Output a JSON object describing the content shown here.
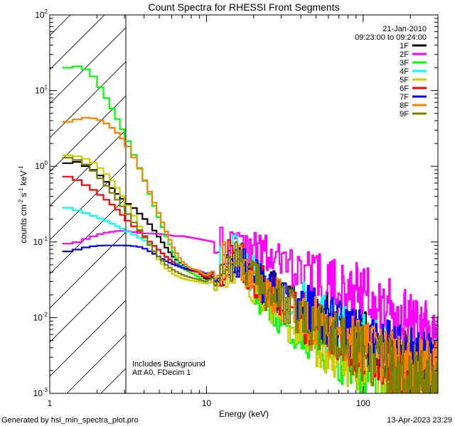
{
  "chart_data": {
    "type": "line",
    "title": "Count Spectra for RHESSI Front Segments",
    "xlabel": "Energy (keV)",
    "ylabel_parts": {
      "a": "counts cm",
      "b": "-2",
      "c": " s",
      "d": "-1",
      "e": " keV",
      "f": "-1"
    },
    "xscale": "log",
    "yscale": "log",
    "xlim": [
      1,
      300
    ],
    "ylim": [
      0.001,
      100
    ],
    "x_ticks": [
      {
        "value": 1,
        "label": "1"
      },
      {
        "value": 10,
        "label": "10"
      },
      {
        "value": 100,
        "label": "100"
      }
    ],
    "y_ticks": [
      {
        "value": 0.001,
        "base": "10",
        "exp": "-3"
      },
      {
        "value": 0.01,
        "base": "10",
        "exp": "-2"
      },
      {
        "value": 0.1,
        "base": "10",
        "exp": "-1"
      },
      {
        "value": 1,
        "base": "10",
        "exp": "0"
      },
      {
        "value": 10,
        "base": "10",
        "exp": "1"
      },
      {
        "value": 100,
        "base": "10",
        "exp": "2"
      }
    ],
    "hatch_region_x": [
      1,
      3
    ],
    "date": "21-Jan-2010",
    "time_range": "09:23:00 to 09:24:00",
    "annotations": [
      "Includes Background",
      "Att A0, FDecim 1"
    ],
    "footer_left": "Generated by hsi_min_spectra_plot.pro",
    "footer_right": "13-Apr-2023 23:29",
    "legend_location": "top-right",
    "series": [
      {
        "name": "1F",
        "color": "#000000",
        "seed": 11,
        "floor_x": 150,
        "values": [
          1.1,
          1.1,
          1.15,
          1.0,
          0.88,
          0.72,
          0.55,
          0.42,
          0.33,
          0.28,
          0.22,
          0.17,
          0.12,
          0.085,
          0.062,
          0.05,
          0.043,
          0.04,
          0.032,
          0.035,
          0.045,
          0.05,
          0.06,
          0.042,
          0.032,
          0.028,
          0.024,
          0.02,
          0.017,
          0.015,
          0.014,
          0.012,
          0.011,
          0.0095,
          0.0085,
          0.0075,
          0.0065,
          0.0057,
          0.005,
          0.0045,
          0.004,
          0.0036,
          0.0032,
          0.003,
          0.0028,
          0.0026,
          0.0025,
          0.0024
        ]
      },
      {
        "name": "2F",
        "color": "#ff00ff",
        "seed": 22,
        "floor_x": 250,
        "values": [
          0.095,
          0.095,
          0.1,
          0.11,
          0.12,
          0.13,
          0.135,
          0.14,
          0.14,
          0.135,
          0.13,
          0.13,
          0.128,
          0.125,
          0.12,
          0.12,
          0.115,
          0.11,
          0.105,
          0.1,
          0.095,
          0.09,
          0.085,
          0.08,
          0.075,
          0.07,
          0.062,
          0.055,
          0.05,
          0.045,
          0.04,
          0.036,
          0.033,
          0.03,
          0.028,
          0.026,
          0.024,
          0.022,
          0.02,
          0.018,
          0.016,
          0.014,
          0.012,
          0.01,
          0.009,
          0.008,
          0.007,
          0.006
        ]
      },
      {
        "name": "3F",
        "color": "#00ff00",
        "seed": 33,
        "floor_x": 120,
        "values": [
          20,
          20,
          21,
          19,
          15,
          10,
          6.5,
          4.0,
          2.4,
          1.4,
          0.8,
          0.42,
          0.22,
          0.12,
          0.07,
          0.045,
          0.04,
          0.035,
          0.028,
          0.03,
          0.04,
          0.045,
          0.05,
          0.035,
          0.022,
          0.017,
          0.014,
          0.011,
          0.009,
          0.0075,
          0.0065,
          0.0055,
          0.0047,
          0.004,
          0.0035,
          0.003,
          0.0026,
          0.0023,
          0.002,
          0.0019,
          0.0018,
          0.0017,
          0.0016,
          0.0015,
          0.0014,
          0.0013,
          0.0012,
          0.0012
        ]
      },
      {
        "name": "4F",
        "color": "#00ffff",
        "seed": 44,
        "floor_x": 160,
        "values": [
          0.29,
          0.28,
          0.26,
          0.24,
          0.22,
          0.2,
          0.18,
          0.16,
          0.14,
          0.125,
          0.11,
          0.095,
          0.08,
          0.065,
          0.055,
          0.048,
          0.043,
          0.04,
          0.035,
          0.04,
          0.05,
          0.065,
          0.075,
          0.05,
          0.035,
          0.03,
          0.025,
          0.021,
          0.018,
          0.015,
          0.013,
          0.011,
          0.0095,
          0.0085,
          0.0075,
          0.0065,
          0.0057,
          0.005,
          0.0045,
          0.004,
          0.0036,
          0.0033,
          0.003,
          0.0028,
          0.0026,
          0.0025,
          0.0024,
          0.0023
        ]
      },
      {
        "name": "5F",
        "color": "#cccc00",
        "seed": 55,
        "floor_x": 110,
        "values": [
          1.4,
          1.4,
          1.35,
          1.25,
          1.1,
          0.9,
          0.7,
          0.5,
          0.33,
          0.22,
          0.14,
          0.09,
          0.06,
          0.045,
          0.037,
          0.033,
          0.031,
          0.03,
          0.028,
          0.03,
          0.04,
          0.05,
          0.055,
          0.035,
          0.024,
          0.019,
          0.015,
          0.012,
          0.0095,
          0.008,
          0.0068,
          0.0058,
          0.005,
          0.0043,
          0.0037,
          0.0032,
          0.0028,
          0.0025,
          0.0022,
          0.002,
          0.0018,
          0.0016,
          0.0015,
          0.0014,
          0.0013,
          0.0012,
          0.0012,
          0.0011
        ]
      },
      {
        "name": "6F",
        "color": "#ff0000",
        "seed": 66,
        "floor_x": 150,
        "values": [
          0.75,
          0.72,
          0.65,
          0.56,
          0.48,
          0.4,
          0.33,
          0.26,
          0.2,
          0.16,
          0.13,
          0.1,
          0.08,
          0.064,
          0.053,
          0.046,
          0.042,
          0.04,
          0.034,
          0.038,
          0.05,
          0.06,
          0.07,
          0.045,
          0.032,
          0.027,
          0.022,
          0.018,
          0.015,
          0.0125,
          0.0108,
          0.0092,
          0.008,
          0.007,
          0.0061,
          0.0053,
          0.0047,
          0.0042,
          0.0038,
          0.0034,
          0.0031,
          0.0029,
          0.0027,
          0.0025,
          0.0024,
          0.0023,
          0.0022,
          0.0022
        ]
      },
      {
        "name": "7F",
        "color": "#0000ff",
        "seed": 77,
        "floor_x": 200,
        "values": [
          0.075,
          0.075,
          0.08,
          0.085,
          0.088,
          0.09,
          0.09,
          0.09,
          0.09,
          0.088,
          0.085,
          0.075,
          0.065,
          0.056,
          0.05,
          0.046,
          0.043,
          0.042,
          0.038,
          0.04,
          0.048,
          0.055,
          0.065,
          0.05,
          0.035,
          0.03,
          0.025,
          0.021,
          0.018,
          0.0155,
          0.0135,
          0.0118,
          0.0104,
          0.0092,
          0.0082,
          0.0073,
          0.0065,
          0.0058,
          0.0052,
          0.0047,
          0.0043,
          0.004,
          0.0037,
          0.0034,
          0.0031,
          0.0029,
          0.0027,
          0.0025
        ]
      },
      {
        "name": "8F",
        "color": "#ff8000",
        "seed": 88,
        "floor_x": 140,
        "values": [
          3.8,
          3.9,
          4.2,
          4.4,
          4.3,
          4.0,
          3.4,
          2.7,
          2.0,
          1.3,
          0.8,
          0.45,
          0.25,
          0.14,
          0.08,
          0.055,
          0.045,
          0.042,
          0.036,
          0.042,
          0.055,
          0.07,
          0.075,
          0.048,
          0.033,
          0.027,
          0.022,
          0.018,
          0.015,
          0.0125,
          0.0105,
          0.009,
          0.0078,
          0.0068,
          0.006,
          0.0053,
          0.0047,
          0.0042,
          0.0038,
          0.0034,
          0.0031,
          0.0029,
          0.0027,
          0.0025,
          0.0024,
          0.0023,
          0.0022,
          0.0021
        ]
      },
      {
        "name": "9F",
        "color": "#808000",
        "seed": 99,
        "floor_x": 140,
        "values": [
          1.3,
          1.3,
          1.2,
          1.05,
          0.85,
          0.65,
          0.48,
          0.35,
          0.25,
          0.18,
          0.13,
          0.09,
          0.065,
          0.05,
          0.042,
          0.037,
          0.034,
          0.032,
          0.03,
          0.034,
          0.045,
          0.055,
          0.065,
          0.045,
          0.032,
          0.026,
          0.021,
          0.017,
          0.014,
          0.0115,
          0.0097,
          0.0082,
          0.007,
          0.006,
          0.0052,
          0.0045,
          0.004,
          0.0036,
          0.0032,
          0.0029,
          0.0026,
          0.0024,
          0.0022,
          0.002,
          0.0019,
          0.0018,
          0.0017,
          0.0016
        ]
      }
    ]
  }
}
